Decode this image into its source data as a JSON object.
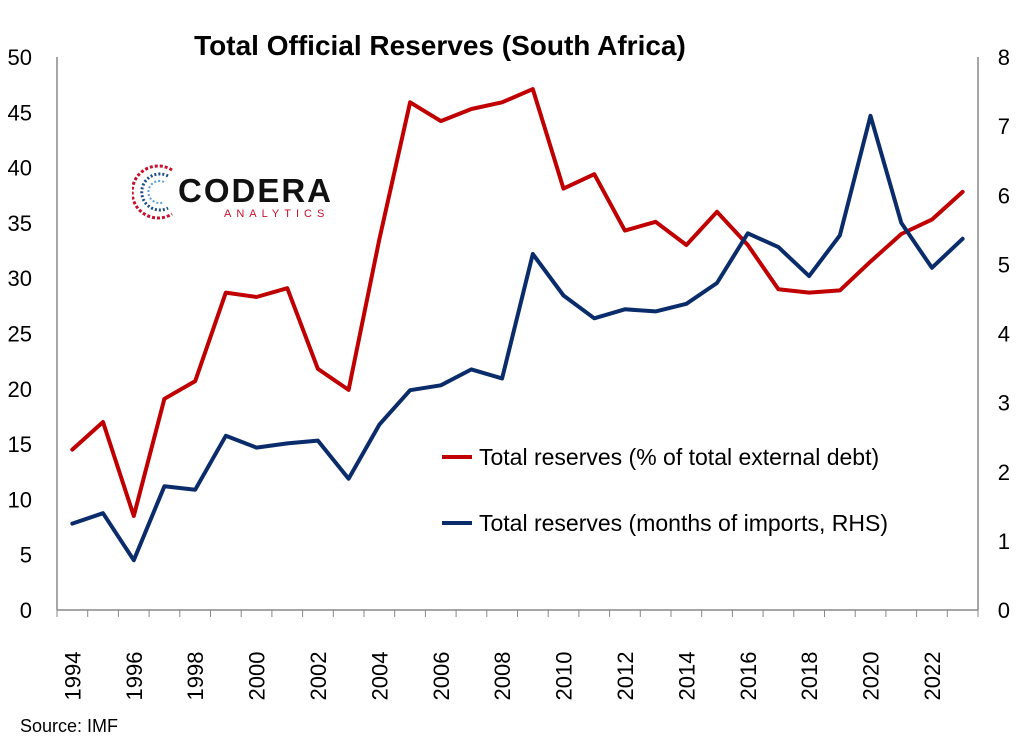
{
  "chart_data": {
    "type": "line",
    "title": "Total Official Reserves (South Africa)",
    "x": [
      1994,
      1995,
      1996,
      1997,
      1998,
      1999,
      2000,
      2001,
      2002,
      2003,
      2004,
      2005,
      2006,
      2007,
      2008,
      2009,
      2010,
      2011,
      2012,
      2013,
      2014,
      2015,
      2016,
      2017,
      2018,
      2019,
      2020,
      2021,
      2022,
      2023
    ],
    "x_tick_labels": [
      "1994",
      "1996",
      "1998",
      "2000",
      "2002",
      "2004",
      "2006",
      "2008",
      "2010",
      "2012",
      "2014",
      "2016",
      "2018",
      "2020",
      "2022"
    ],
    "y_left_ticks": [
      "0",
      "5",
      "10",
      "15",
      "20",
      "25",
      "30",
      "35",
      "40",
      "45",
      "50"
    ],
    "y_right_ticks": [
      "0",
      "1",
      "2",
      "3",
      "4",
      "5",
      "6",
      "7",
      "8"
    ],
    "ylim_left": [
      0,
      50
    ],
    "ylim_right": [
      0,
      8
    ],
    "grid": false,
    "legend_position": "right-middle",
    "series": [
      {
        "name": "Total reserves (% of total external debt)",
        "axis": "left",
        "color": "#c00000",
        "values": [
          14.5,
          17.0,
          8.5,
          19.1,
          20.7,
          28.7,
          28.3,
          29.1,
          21.8,
          19.9,
          33.5,
          45.9,
          44.2,
          45.3,
          45.9,
          47.1,
          38.1,
          39.4,
          34.3,
          35.1,
          33.0,
          36.0,
          33.0,
          29.0,
          28.7,
          28.9,
          31.5,
          34.0,
          35.3,
          37.8
        ]
      },
      {
        "name": "Total reserves (months of imports, RHS)",
        "axis": "right",
        "color": "#0b2c6b",
        "values": [
          1.25,
          1.4,
          0.72,
          1.79,
          1.74,
          2.52,
          2.35,
          2.41,
          2.45,
          1.9,
          2.68,
          3.18,
          3.25,
          3.48,
          3.35,
          5.15,
          4.55,
          4.22,
          4.35,
          4.32,
          4.43,
          4.73,
          5.45,
          5.25,
          4.83,
          5.42,
          7.15,
          5.6,
          4.95,
          5.37
        ]
      }
    ]
  },
  "logo": {
    "word": "CODERA",
    "sub": "ANALYTICS"
  },
  "source": "Source: IMF"
}
